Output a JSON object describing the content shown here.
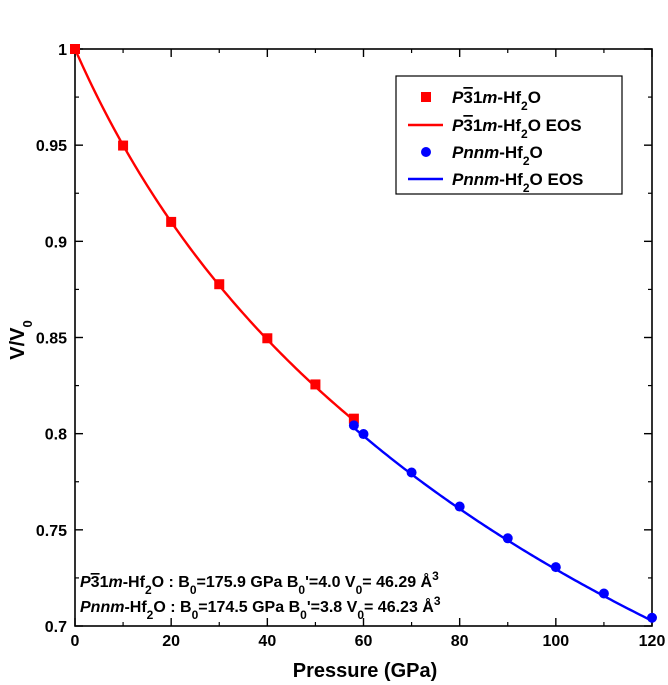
{
  "chart_data": {
    "type": "scatter",
    "xlabel": "Pressure (GPa)",
    "ylabel": "V/V0",
    "ylabel_main": "V/V",
    "ylabel_sub": "0",
    "xlim": [
      0,
      120
    ],
    "ylim": [
      0.7,
      1.0
    ],
    "x_ticks": [
      0,
      20,
      40,
      60,
      80,
      100,
      120
    ],
    "y_ticks": [
      0.7,
      0.75,
      0.8,
      0.85,
      0.9,
      0.95,
      1.0
    ],
    "x_tick_labels": [
      "0",
      "20",
      "40",
      "60",
      "80",
      "100",
      "120"
    ],
    "y_tick_labels": [
      "0.7",
      "0.75",
      "0.8",
      "0.85",
      "0.9",
      "0.95",
      "1"
    ],
    "legend_position": "top-right",
    "series": [
      {
        "name": "P-31m-Hf2O",
        "kind": "points",
        "marker": "square",
        "color": "#ff0000",
        "legend": [
          "P",
          "3",
          "1",
          "m",
          "-Hf",
          "2",
          "O",
          ""
        ],
        "x": [
          0,
          10,
          20,
          30,
          40,
          50,
          58
        ],
        "y": [
          1.0,
          0.9498,
          0.9101,
          0.8777,
          0.8496,
          0.8256,
          0.8078
        ]
      },
      {
        "name": "P-31m-Hf2O EOS",
        "kind": "eos",
        "color": "#ff0000",
        "legend": [
          "P",
          "3",
          "1",
          "m",
          "-Hf",
          "2",
          "O",
          " EOS"
        ],
        "B0": 175.9,
        "B0p": 4.0,
        "V0": 46.29,
        "p_range": [
          0,
          58
        ]
      },
      {
        "name": "Pnnm-Hf2O",
        "kind": "points",
        "marker": "circle",
        "color": "#0000ff",
        "legend": [
          "Pnnm",
          "-Hf",
          "2",
          "O",
          ""
        ],
        "x": [
          58,
          60,
          70,
          80,
          90,
          100,
          110,
          120
        ],
        "y": [
          0.8043,
          0.7998,
          0.7798,
          0.7621,
          0.7456,
          0.7306,
          0.7169,
          0.7043
        ]
      },
      {
        "name": "Pnnm-Hf2O EOS",
        "kind": "eos",
        "color": "#0000ff",
        "legend": [
          "Pnnm",
          "-Hf",
          "2",
          "O",
          " EOS"
        ],
        "B0": 174.5,
        "B0p": 3.8,
        "V0": 46.23,
        "p_range": [
          58,
          120
        ]
      }
    ],
    "annotations": [
      {
        "phase_italic": "P",
        "phase_bar": "3",
        "phase_rest1": "1",
        "phase_italic2": "m",
        "compound": "-Hf",
        "compound_sub": "2",
        "compound_end": "O",
        "b0_label": " : B",
        "b0_sub": "0",
        "b0_value": "=175.9 GPa B",
        "b0p_sub": "0",
        "b0p_value": "'=4.0 V",
        "v0_sub": "0",
        "v0_value": "= 46.29 Å",
        "unit_sup": "3"
      },
      {
        "phase_italic": "Pnnm",
        "compound": "-Hf",
        "compound_sub": "2",
        "compound_end": "O",
        "b0_label": " : B",
        "b0_sub": "0",
        "b0_value": "=174.5 GPa B",
        "b0p_sub": "0",
        "b0p_value": "'=3.8 V",
        "v0_sub": "0",
        "v0_value": "= 46.23 Å",
        "unit_sup": "3"
      }
    ]
  }
}
